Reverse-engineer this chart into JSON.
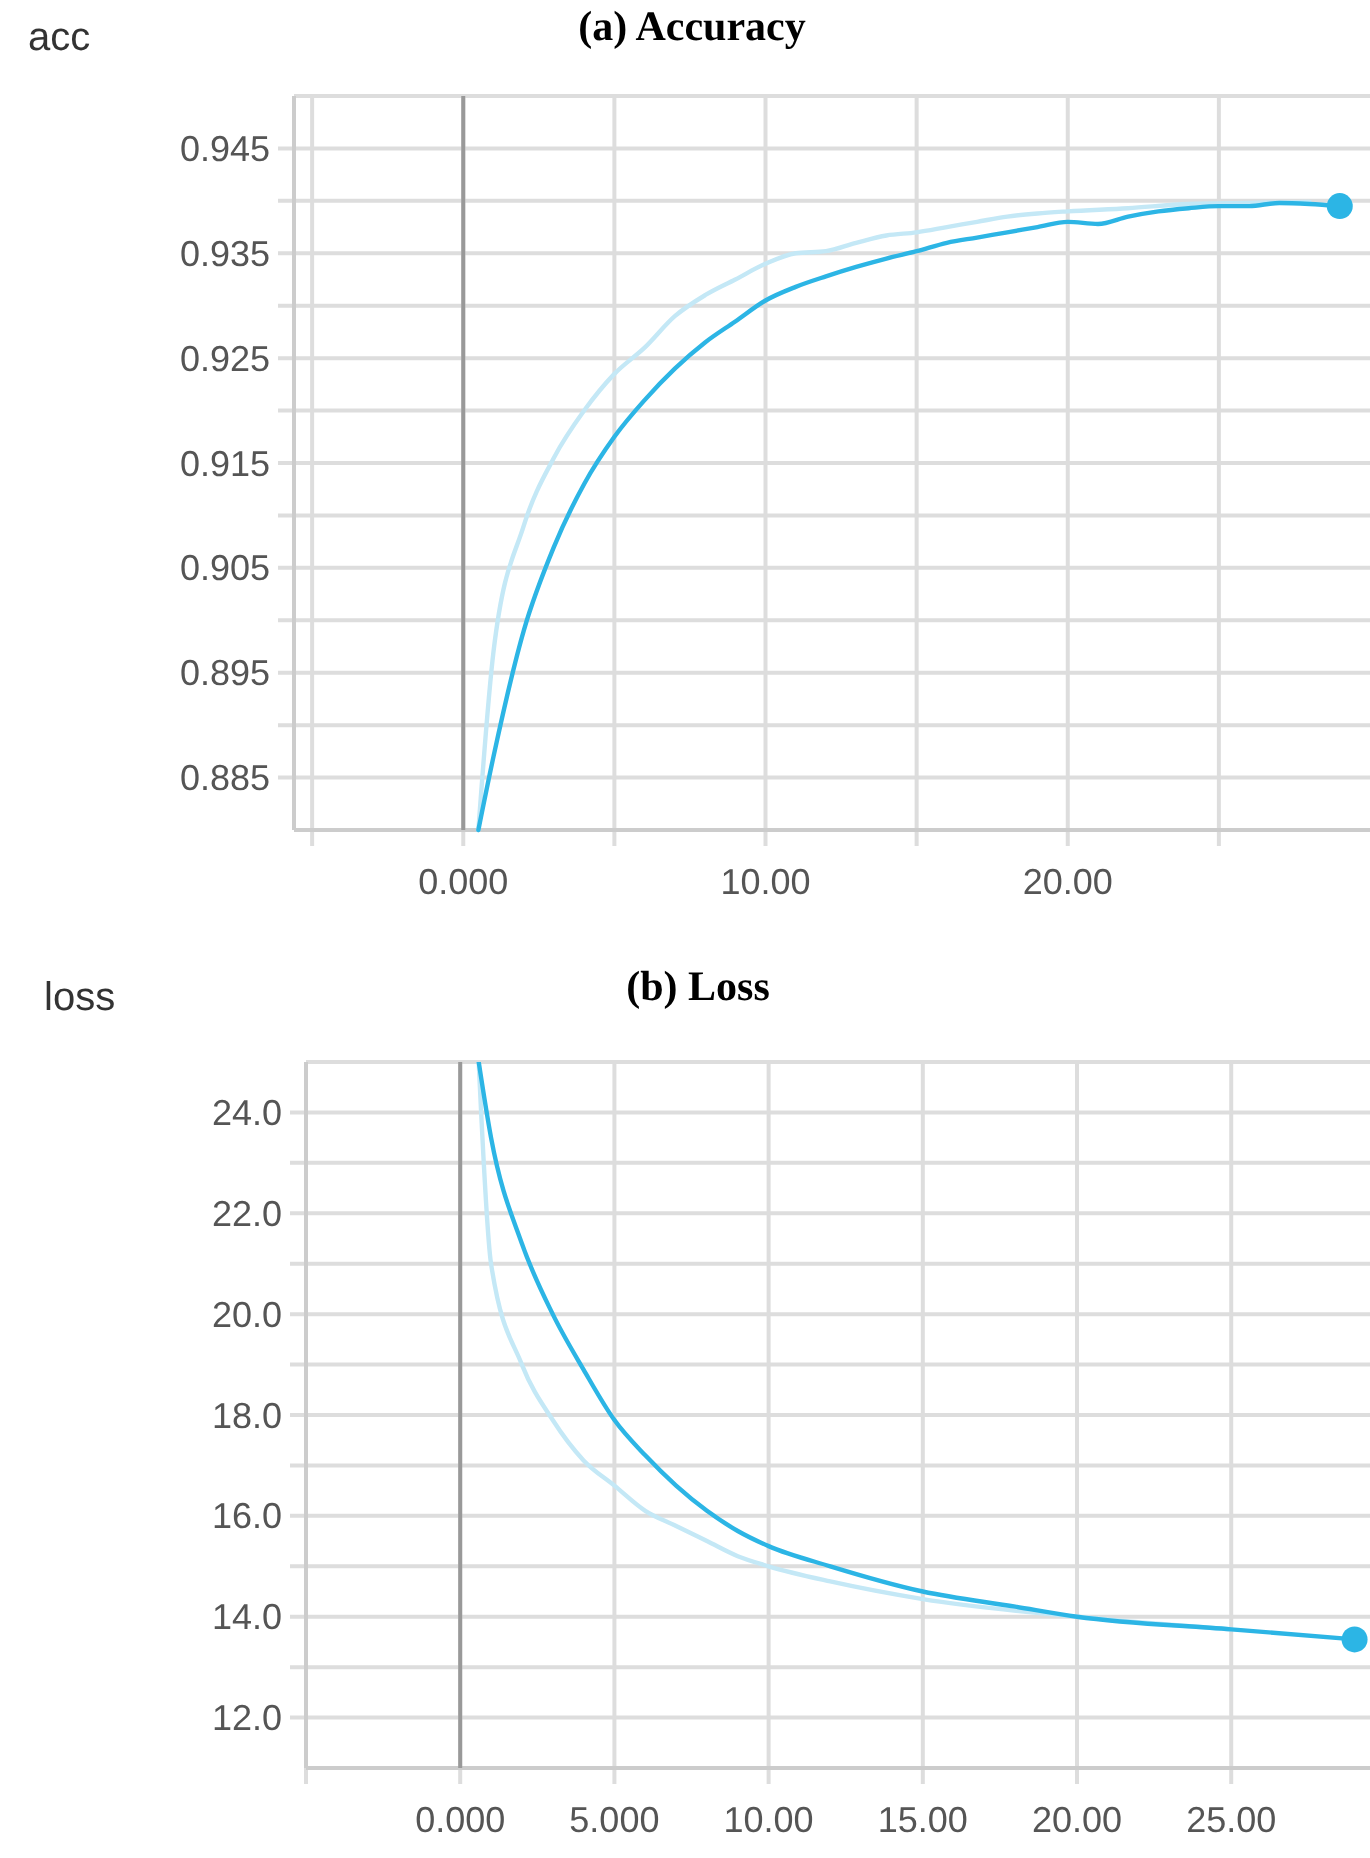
{
  "chart_data": [
    {
      "type": "line",
      "title": "(a) Accuracy",
      "ylabel": "acc",
      "xlim": [
        -5.6,
        30
      ],
      "ylim": [
        0.88,
        0.95
      ],
      "xticks": [
        {
          "value": -5,
          "label": null
        },
        {
          "value": 0,
          "label": "0.000"
        },
        {
          "value": 5,
          "label": null
        },
        {
          "value": 10,
          "label": "10.00"
        },
        {
          "value": 15,
          "label": null
        },
        {
          "value": 20,
          "label": "20.00"
        },
        {
          "value": 25,
          "label": null
        }
      ],
      "yticks": [
        0.885,
        {
          "value": 0.89,
          "label": null
        },
        0.895,
        {
          "value": 0.9,
          "label": null
        },
        0.905,
        {
          "value": 0.91,
          "label": null
        },
        0.915,
        {
          "value": 0.92,
          "label": null
        },
        0.925,
        {
          "value": 0.93,
          "label": null
        },
        0.935,
        {
          "value": 0.94,
          "label": null
        },
        0.945
      ],
      "grid": true,
      "marker": "none",
      "line_style": "solid",
      "ref_lines": [
        {
          "axis": "x",
          "value": 0,
          "label": null,
          "color": "#999999"
        }
      ],
      "series": [
        {
          "color": "#c4e8f6",
          "x": [
            0.5,
            1,
            2,
            3,
            4,
            5,
            6,
            7,
            8,
            9,
            10,
            11,
            12,
            13,
            14,
            15,
            16,
            17,
            18,
            19,
            20,
            22,
            24,
            26,
            28
          ],
          "values": [
            0.88,
            0.897,
            0.909,
            0.9155,
            0.92,
            0.9235,
            0.926,
            0.929,
            0.931,
            0.9325,
            0.934,
            0.935,
            0.9352,
            0.936,
            0.9367,
            0.937,
            0.9375,
            0.938,
            0.9385,
            0.9388,
            0.939,
            0.9393,
            0.9397,
            0.9398,
            0.9399
          ]
        },
        {
          "color": "#2cb5e5",
          "x": [
            0.5,
            1,
            2,
            3,
            4,
            5,
            6,
            7,
            8,
            9,
            10,
            11,
            12,
            13,
            14,
            15,
            16,
            17,
            18,
            19,
            20,
            21,
            22,
            23,
            24,
            25,
            26,
            27,
            28,
            29
          ],
          "values": [
            0.88,
            0.887,
            0.899,
            0.907,
            0.913,
            0.9175,
            0.921,
            0.924,
            0.9265,
            0.9285,
            0.9305,
            0.9318,
            0.9328,
            0.9337,
            0.9345,
            0.9352,
            0.936,
            0.9365,
            0.937,
            0.9375,
            0.938,
            0.9378,
            0.9385,
            0.939,
            0.9393,
            0.9395,
            0.9395,
            0.9398,
            0.9397,
            0.9395
          ]
        },
        {
          "type": "scatter",
          "marker": "circle",
          "color": "#2cb5e5",
          "x": [
            29
          ],
          "values": [
            0.9395
          ]
        }
      ]
    },
    {
      "type": "line",
      "title": "(b) Loss",
      "ylabel": "loss",
      "xlim": [
        -5,
        29.5
      ],
      "ylim": [
        11,
        25
      ],
      "xticks": [
        {
          "value": -5,
          "label": null
        },
        {
          "value": 0,
          "label": "0.000"
        },
        {
          "value": 5,
          "label": "5.000"
        },
        {
          "value": 10,
          "label": "10.00"
        },
        {
          "value": 15,
          "label": "15.00"
        },
        {
          "value": 20,
          "label": "20.00"
        },
        {
          "value": 25,
          "label": "25.00"
        }
      ],
      "yticks": [
        {
          "value": 12,
          "label": "12.0"
        },
        {
          "value": 13,
          "label": null
        },
        {
          "value": 14,
          "label": "14.0"
        },
        {
          "value": 15,
          "label": null
        },
        {
          "value": 16,
          "label": "16.0"
        },
        {
          "value": 17,
          "label": null
        },
        {
          "value": 18,
          "label": "18.0"
        },
        {
          "value": 19,
          "label": null
        },
        {
          "value": 20,
          "label": "20.0"
        },
        {
          "value": 21,
          "label": null
        },
        {
          "value": 22,
          "label": "22.0"
        },
        {
          "value": 23,
          "label": null
        },
        {
          "value": 24,
          "label": "24.0"
        }
      ],
      "grid": true,
      "marker": "none",
      "line_style": "solid",
      "ref_lines": [
        {
          "axis": "x",
          "value": 0,
          "label": null,
          "color": "#999999"
        }
      ],
      "series": [
        {
          "color": "#c4e8f6",
          "x": [
            0.6,
            1,
            2,
            3,
            4,
            5,
            6,
            7,
            8,
            9,
            10,
            12,
            15,
            20,
            25
          ],
          "values": [
            25,
            21,
            19,
            17.9,
            17.1,
            16.6,
            16.1,
            15.8,
            15.5,
            15.2,
            15,
            14.7,
            14.35,
            14,
            13.75
          ]
        },
        {
          "color": "#2cb5e5",
          "x": [
            0.6,
            1,
            2,
            3,
            4,
            5,
            6,
            7,
            8,
            9,
            10,
            12,
            15,
            18,
            20,
            25,
            29
          ],
          "values": [
            25,
            23.5,
            21.4,
            20,
            18.9,
            17.9,
            17.2,
            16.6,
            16.1,
            15.7,
            15.4,
            15,
            14.5,
            14.2,
            14,
            13.75,
            13.55
          ]
        },
        {
          "type": "scatter",
          "marker": "circle",
          "color": "#2cb5e5",
          "x": [
            29
          ],
          "values": [
            13.55
          ]
        }
      ]
    }
  ]
}
